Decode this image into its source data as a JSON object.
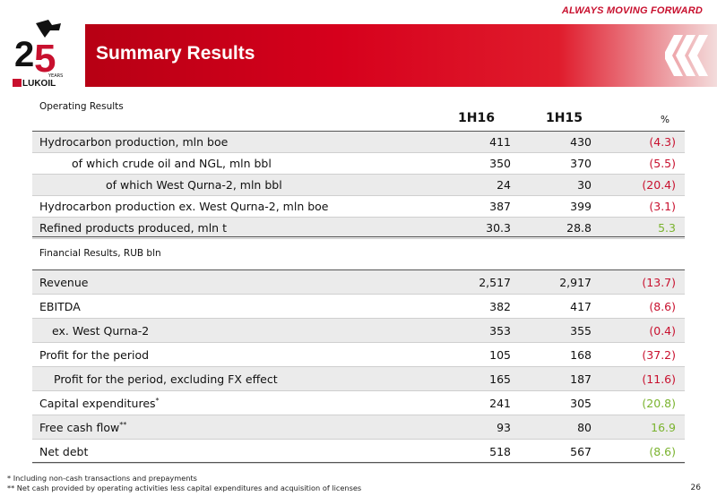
{
  "tagline": "ALWAYS MOVING FORWARD",
  "logo": {
    "years_text": "YEARS",
    "brand": "LUKOIL",
    "number": "25"
  },
  "title": "Summary Results",
  "operating": {
    "label": "Operating Results",
    "columns": {
      "c1": "1H16",
      "c2": "1H15",
      "c3": "%"
    },
    "rows": [
      {
        "label": "Hydrocarbon production, mln boe",
        "v1": "411",
        "v2": "430",
        "v3": "(4.3)",
        "sign": "neg",
        "shade": true,
        "indent": 8
      },
      {
        "label": "of which crude oil and NGL, mln bbl",
        "v1": "350",
        "v2": "370",
        "v3": "(5.5)",
        "sign": "neg",
        "shade": false,
        "indent": 44
      },
      {
        "label": "of which West Qurna-2, mln bbl",
        "v1": "24",
        "v2": "30",
        "v3": "(20.4)",
        "sign": "neg",
        "shade": true,
        "indent": 82
      },
      {
        "label": "Hydrocarbon production ex. West Qurna-2, mln boe",
        "v1": "387",
        "v2": "399",
        "v3": "(3.1)",
        "sign": "neg",
        "shade": false,
        "indent": 8
      },
      {
        "label": "Refined products produced, mln t",
        "v1": "30.3",
        "v2": "28.8",
        "v3": "5.3",
        "sign": "pos",
        "shade": true,
        "indent": 8
      }
    ]
  },
  "financial": {
    "label": "Financial Results, RUB bln",
    "rows": [
      {
        "label": "Revenue",
        "v1": "2,517",
        "v2": "2,917",
        "v3": "(13.7)",
        "sign": "neg",
        "shade": true,
        "indent": 8
      },
      {
        "label": "EBITDA",
        "v1": "382",
        "v2": "417",
        "v3": "(8.6)",
        "sign": "neg",
        "shade": false,
        "indent": 8
      },
      {
        "label": "ex. West Qurna-2",
        "v1": "353",
        "v2": "355",
        "v3": "(0.4)",
        "sign": "neg",
        "shade": true,
        "indent": 22
      },
      {
        "label": "Profit for the period",
        "v1": "105",
        "v2": "168",
        "v3": "(37.2)",
        "sign": "neg",
        "shade": false,
        "indent": 8
      },
      {
        "label": "Profit for the period, excluding FX effect",
        "v1": "165",
        "v2": "187",
        "v3": "(11.6)",
        "sign": "neg",
        "shade": true,
        "indent": 24
      },
      {
        "label": "Capital expenditures",
        "sup": "*",
        "v1": "241",
        "v2": "305",
        "v3": "(20.8)",
        "sign": "pos",
        "shade": false,
        "indent": 8
      },
      {
        "label": "Free cash flow",
        "sup": "**",
        "v1": "93",
        "v2": "80",
        "v3": "16.9",
        "sign": "pos",
        "shade": true,
        "indent": 8
      },
      {
        "label": "Net debt",
        "v1": "518",
        "v2": "567",
        "v3": "(8.6)",
        "sign": "pos",
        "shade": false,
        "indent": 8
      }
    ]
  },
  "footnotes": [
    "*   Including non-cash transactions and prepayments",
    "** Net cash provided by operating activities less capital expenditures and acquisition of licenses"
  ],
  "page_number": "26",
  "colors": {
    "brand_red": "#c8102e",
    "negative": "#c8102e",
    "positive": "#7ab32e"
  }
}
